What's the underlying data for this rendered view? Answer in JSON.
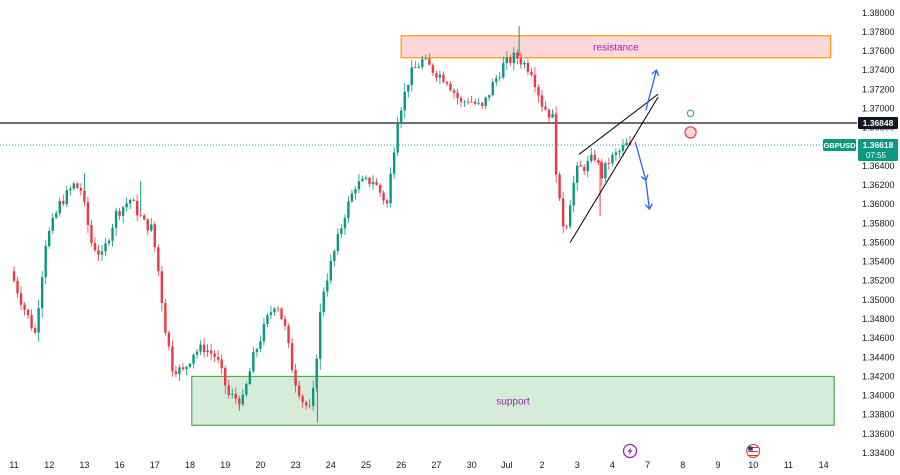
{
  "chart_data": {
    "type": "candlestick",
    "symbol": "GBPUSD",
    "ylim": [
      1.334,
      1.3805
    ],
    "y_ticks": [
      "1.38000",
      "1.37800",
      "1.37600",
      "1.37400",
      "1.37200",
      "1.37000",
      "1.36800",
      "1.36600",
      "1.36400",
      "1.36200",
      "1.36000",
      "1.35800",
      "1.35600",
      "1.35400",
      "1.35200",
      "1.35000",
      "1.34800",
      "1.34600",
      "1.34400",
      "1.34200",
      "1.34000",
      "1.33800",
      "1.33600",
      "1.33400"
    ],
    "x_ticks": [
      {
        "label": "11",
        "day": 0
      },
      {
        "label": "12",
        "day": 1
      },
      {
        "label": "13",
        "day": 2
      },
      {
        "label": "16",
        "day": 3
      },
      {
        "label": "17",
        "day": 4
      },
      {
        "label": "18",
        "day": 5
      },
      {
        "label": "19",
        "day": 6
      },
      {
        "label": "20",
        "day": 7
      },
      {
        "label": "23",
        "day": 8
      },
      {
        "label": "24",
        "day": 9
      },
      {
        "label": "25",
        "day": 10
      },
      {
        "label": "26",
        "day": 11
      },
      {
        "label": "27",
        "day": 12
      },
      {
        "label": "30",
        "day": 13
      },
      {
        "label": "Jul",
        "day": 14
      },
      {
        "label": "2",
        "day": 15
      },
      {
        "label": "3",
        "day": 16
      },
      {
        "label": "4",
        "day": 17
      },
      {
        "label": "7",
        "day": 18
      },
      {
        "label": "8",
        "day": 19
      },
      {
        "label": "9",
        "day": 20
      },
      {
        "label": "10",
        "day": 21
      },
      {
        "label": "11",
        "day": 22
      },
      {
        "label": "14",
        "day": 23
      }
    ],
    "price_path": [
      [
        0.0,
        1.353
      ],
      [
        0.35,
        1.3495
      ],
      [
        0.7,
        1.3465
      ],
      [
        1.0,
        1.356
      ],
      [
        1.4,
        1.36
      ],
      [
        1.8,
        1.362
      ],
      [
        2.0,
        1.3615
      ],
      [
        2.3,
        1.356
      ],
      [
        2.6,
        1.3545
      ],
      [
        3.0,
        1.359
      ],
      [
        3.4,
        1.3605
      ],
      [
        3.8,
        1.358
      ],
      [
        4.0,
        1.3575
      ],
      [
        4.15,
        1.3545
      ],
      [
        4.4,
        1.347
      ],
      [
        4.6,
        1.343
      ],
      [
        4.9,
        1.3425
      ],
      [
        5.2,
        1.3445
      ],
      [
        5.5,
        1.345
      ],
      [
        5.85,
        1.344
      ],
      [
        6.2,
        1.34
      ],
      [
        6.6,
        1.3395
      ],
      [
        6.9,
        1.344
      ],
      [
        7.3,
        1.348
      ],
      [
        7.55,
        1.35
      ],
      [
        7.8,
        1.347
      ],
      [
        8.05,
        1.342
      ],
      [
        8.3,
        1.3395
      ],
      [
        8.55,
        1.3382
      ],
      [
        8.85,
        1.3505
      ],
      [
        9.2,
        1.355
      ],
      [
        9.5,
        1.359
      ],
      [
        9.8,
        1.362
      ],
      [
        10.3,
        1.3625
      ],
      [
        10.7,
        1.36
      ],
      [
        11.0,
        1.369
      ],
      [
        11.35,
        1.3735
      ],
      [
        11.7,
        1.375
      ],
      [
        12.0,
        1.374
      ],
      [
        12.4,
        1.373
      ],
      [
        12.8,
        1.3705
      ],
      [
        13.0,
        1.371
      ],
      [
        13.4,
        1.37
      ],
      [
        13.7,
        1.3725
      ],
      [
        14.0,
        1.3745
      ],
      [
        14.35,
        1.3755
      ],
      [
        14.8,
        1.374
      ],
      [
        15.1,
        1.3705
      ],
      [
        15.4,
        1.369
      ],
      [
        15.55,
        1.361
      ],
      [
        15.75,
        1.357
      ],
      [
        15.95,
        1.3615
      ],
      [
        16.1,
        1.3635
      ],
      [
        16.35,
        1.364
      ],
      [
        16.6,
        1.365
      ],
      [
        16.8,
        1.363
      ],
      [
        17.0,
        1.3645
      ],
      [
        17.3,
        1.3655
      ],
      [
        17.5,
        1.3662
      ]
    ],
    "wicks": [
      {
        "day": 14.35,
        "high": 1.3786
      },
      {
        "day": 2.0,
        "high": 1.3632
      },
      {
        "day": 3.6,
        "high": 1.3624
      },
      {
        "day": 8.62,
        "low": 1.3372
      },
      {
        "day": 6.4,
        "low": 1.3384
      },
      {
        "day": 16.65,
        "low": 1.3588
      }
    ],
    "resistance": {
      "label": "resistance",
      "low": 1.3753,
      "high": 1.3776,
      "from_day": 11.0,
      "to_day": 23.2
    },
    "support": {
      "label": "support",
      "low": 1.3369,
      "high": 1.342,
      "from_day": 5.05,
      "to_day": 23.3
    },
    "horizontal_line": {
      "price": "1.36848"
    },
    "current_price": {
      "symbol": "GBPUSD",
      "price": "1.36618",
      "countdown": "07:55"
    },
    "wedge": {
      "lower": [
        [
          15.8,
          1.356
        ],
        [
          18.3,
          1.3712
        ]
      ],
      "upper": [
        [
          16.05,
          1.3652
        ],
        [
          18.3,
          1.3715
        ]
      ]
    },
    "colors": {
      "up": "#089981",
      "down": "#f23645",
      "wedge": "#000000",
      "arrows": "#2962ff",
      "price_badge": "#089981",
      "line_badge": "#131722",
      "resistance_fill": "#fcd7d9",
      "resistance_border": "#ff9800",
      "resistance_text": "#9c27b0",
      "support_fill": "#d5ecd9",
      "support_border": "#4caf50",
      "support_text": "#9c27b0",
      "marker_green": "#4caf50",
      "marker_red": "#f23645"
    },
    "annotations": [
      {
        "type": "arrow",
        "direction": "up",
        "from": [
          17.95,
          1.3698
        ],
        "to": [
          18.25,
          1.374
        ]
      },
      {
        "type": "arrow",
        "direction": "down",
        "from": [
          17.65,
          1.3665
        ],
        "to": [
          17.95,
          1.3625
        ]
      },
      {
        "type": "arrow",
        "direction": "down",
        "from": [
          17.95,
          1.3625
        ],
        "to": [
          18.05,
          1.3595
        ]
      },
      {
        "type": "circle",
        "color": "green",
        "day": 19.22,
        "price": 1.3695
      },
      {
        "type": "circle",
        "color": "red",
        "day": 19.22,
        "price": 1.3675
      }
    ],
    "event_icons": [
      {
        "name": "lightning-icon",
        "day": 17.5
      },
      {
        "name": "us-flag-icon",
        "day": 21.0
      }
    ]
  }
}
